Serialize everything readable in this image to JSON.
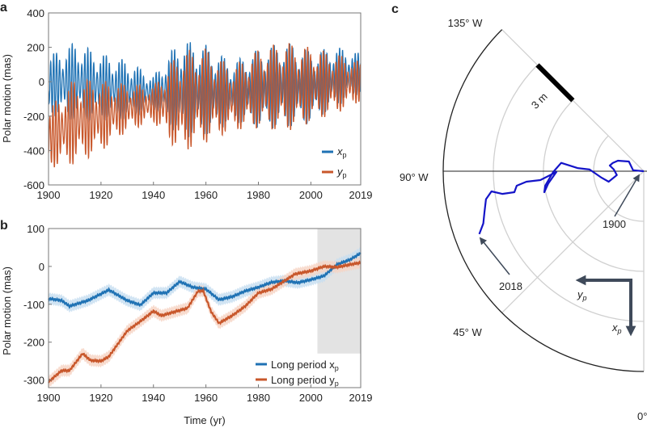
{
  "chart_data": [
    {
      "panel": "a",
      "type": "line",
      "ylabel": "Polar motion (mas)",
      "xlim": [
        1900,
        2019
      ],
      "ylim": [
        -600,
        400
      ],
      "xticks": [
        "1900",
        "1920",
        "1940",
        "1960",
        "1980",
        "2000",
        "2019"
      ],
      "yticks": [
        "400",
        "200",
        "0",
        "-200",
        "-400",
        "-600"
      ],
      "legend_placement": "bottom-right",
      "series": [
        {
          "name": "x",
          "sub": "p",
          "color": "#1f72b4",
          "years": [
            1900,
            1910,
            1920,
            1930,
            1940,
            1950,
            1960,
            1970,
            1980,
            1990,
            2000,
            2010,
            2019
          ],
          "center": [
            -20,
            0,
            -30,
            -50,
            -60,
            -40,
            -50,
            -60,
            -40,
            -20,
            -30,
            30,
            50
          ],
          "amplitude": [
            150,
            200,
            170,
            150,
            80,
            250,
            230,
            150,
            200,
            220,
            180,
            150,
            100
          ]
        },
        {
          "name": "y",
          "sub": "p",
          "color": "#c8572b",
          "years": [
            1900,
            1910,
            1920,
            1930,
            1940,
            1950,
            1960,
            1970,
            1980,
            1990,
            2000,
            2010,
            2019
          ],
          "center": [
            -330,
            -230,
            -200,
            -150,
            -130,
            -120,
            -80,
            -100,
            -40,
            -30,
            -20,
            -10,
            0
          ],
          "amplitude": [
            150,
            220,
            180,
            120,
            90,
            260,
            240,
            160,
            200,
            230,
            190,
            150,
            100
          ]
        }
      ]
    },
    {
      "panel": "b",
      "type": "line",
      "xlabel": "Time (yr)",
      "ylabel": "Polar motion (mas)",
      "xlim": [
        1900,
        2019
      ],
      "ylim": [
        -320,
        100
      ],
      "xticks": [
        "1900",
        "1920",
        "1940",
        "1960",
        "1980",
        "2000",
        "2019"
      ],
      "yticks": [
        "100",
        "0",
        "-100",
        "-200",
        "-300"
      ],
      "legend_placement": "bottom-right",
      "shaded_region": {
        "x": [
          2002.5,
          2019
        ],
        "y": [
          -230,
          100
        ],
        "color": "#e3e3e3"
      },
      "series": [
        {
          "name": "Long period x",
          "sub": "p",
          "color": "#1f72b4",
          "band_color": "#c5ddf0",
          "uncertainty": 15,
          "x": [
            1900,
            1905,
            1908,
            1915,
            1923,
            1930,
            1935,
            1940,
            1945,
            1950,
            1955,
            1960,
            1965,
            1970,
            1975,
            1980,
            1985,
            1990,
            1995,
            2000,
            2005,
            2010,
            2015,
            2019
          ],
          "y": [
            -85,
            -90,
            -105,
            -90,
            -62,
            -90,
            -102,
            -70,
            -70,
            -40,
            -55,
            -60,
            -88,
            -80,
            -65,
            -55,
            -42,
            -38,
            -43,
            -35,
            -25,
            5,
            18,
            35
          ]
        },
        {
          "name": "Long period y",
          "sub": "p",
          "color": "#c8572b",
          "band_color": "#f6d3c3",
          "uncertainty": 15,
          "x": [
            1900,
            1905,
            1908,
            1913,
            1916,
            1920,
            1923,
            1930,
            1935,
            1940,
            1943,
            1948,
            1953,
            1957,
            1959,
            1962,
            1965,
            1970,
            1975,
            1980,
            1985,
            1990,
            1994,
            2000,
            2005,
            2010,
            2015,
            2019
          ],
          "y": [
            -305,
            -275,
            -275,
            -230,
            -248,
            -250,
            -238,
            -170,
            -145,
            -118,
            -130,
            -120,
            -110,
            -65,
            -65,
            -120,
            -150,
            -130,
            -105,
            -70,
            -60,
            -38,
            -20,
            -12,
            0,
            -2,
            5,
            10
          ]
        }
      ]
    },
    {
      "panel": "c",
      "type": "polar-path",
      "angle_labels": [
        "135° W",
        "90° W",
        "45° W",
        "0°"
      ],
      "scale_bar": "3 m",
      "path_color": "#1414c8",
      "start_label": "1900",
      "end_label": "2018",
      "axis_labels": {
        "x": "x",
        "y": "y",
        "sub": "p"
      },
      "path_m": {
        "yp": [
          0,
          0.64,
          0.89,
          1.55,
          1.85,
          2.03,
          1.79,
          1.61,
          2.1,
          2.52,
          3.24,
          3.97,
          4.94,
          5.42,
          5.9,
          5.95,
          5.71,
          5.23,
          6.19,
          7.02,
          7.6,
          7.74,
          8.47,
          9.11,
          9.44,
          9.53,
          9.6,
          9.84
        ],
        "xp": [
          0,
          -0.06,
          -0.58,
          -0.63,
          -0.5,
          -0.34,
          -0.1,
          0.23,
          0.63,
          0.39,
          -0.1,
          -0.19,
          -0.5,
          0.05,
          0.87,
          1.26,
          0.73,
          0.05,
          0.53,
          0.63,
          0.87,
          1.26,
          1.36,
          1.21,
          1.68,
          2.47,
          3.13,
          3.77
        ]
      }
    }
  ],
  "panels": {
    "a": "a",
    "b": "b",
    "c": "c"
  }
}
